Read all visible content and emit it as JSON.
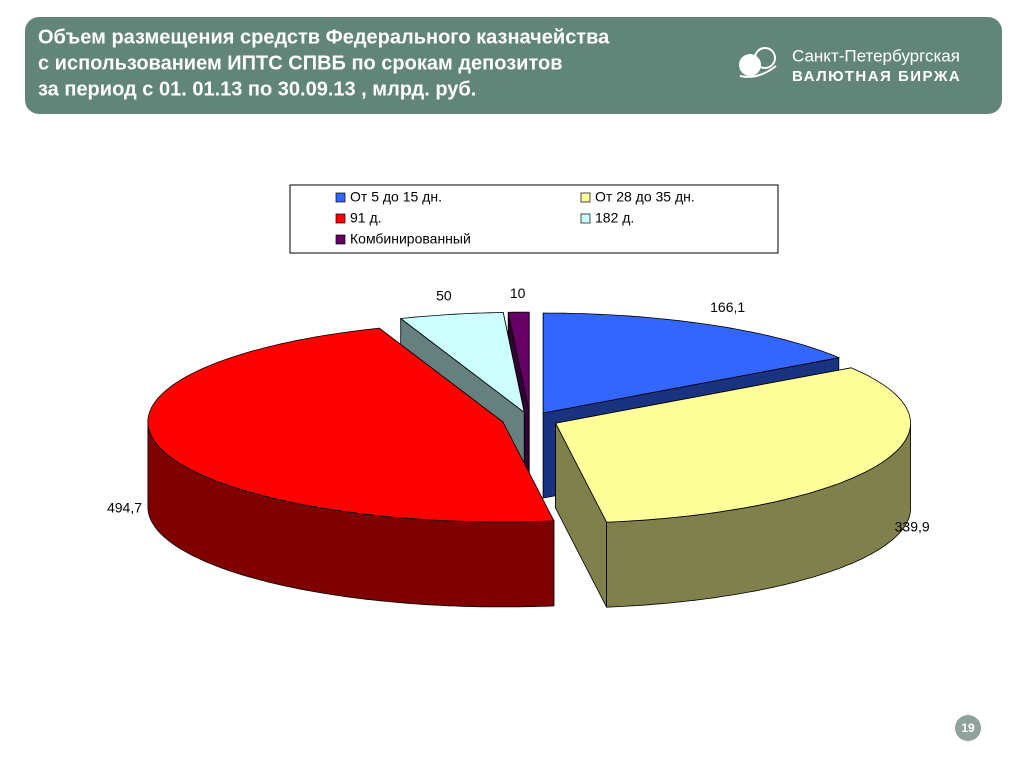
{
  "header": {
    "title": [
      "Объем размещения средств Федерального казначейства",
      "с использованием ИПТС СПВБ по срокам  депозитов",
      "за период с 01. 01.13 по 30.09.13 , млрд. руб."
    ],
    "logo": [
      "Санкт-Петербургская",
      "ВАЛЮТНАЯ БИРЖА"
    ]
  },
  "chart_data": {
    "type": "pie",
    "categories": [
      "От 5 до 15 дн.",
      "От 28 до 35 дн.",
      "91 д.",
      "182 д.",
      "Комбинированный"
    ],
    "values": [
      166.1,
      339.9,
      494.7,
      50,
      10
    ],
    "value_labels": [
      "166,1",
      "339,9",
      "494,7",
      "50",
      "10"
    ],
    "colors": [
      "#3366ff",
      "#ffff99",
      "#ff0000",
      "#ccffff",
      "#660066"
    ]
  },
  "page_number": 19
}
